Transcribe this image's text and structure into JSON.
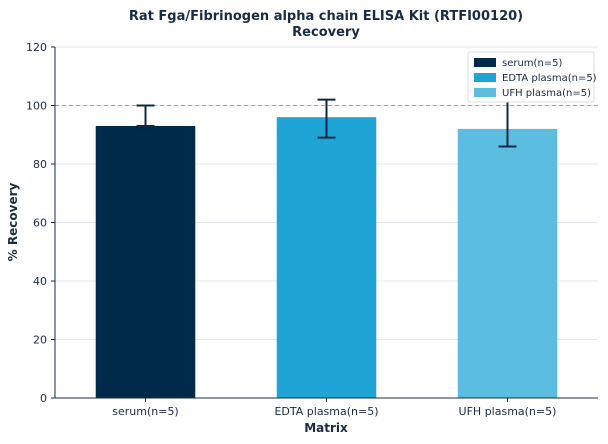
{
  "chart_data": {
    "type": "bar",
    "title": "Rat Fga/Fibrinogen alpha chain ELISA Kit (RTFI00120)",
    "subtitle": "Recovery",
    "xlabel": "Matrix",
    "ylabel": "% Recovery",
    "ylim": [
      0,
      120
    ],
    "yticks": [
      0,
      20,
      40,
      60,
      80,
      100,
      120
    ],
    "grid": true,
    "reference_line": 100,
    "legend_position": "top-right",
    "categories": [
      "serum(n=5)",
      "EDTA plasma(n=5)",
      "UFH plasma(n=5)"
    ],
    "values": [
      93,
      96,
      92
    ],
    "error_low": [
      93,
      89,
      86
    ],
    "error_high": [
      100,
      102,
      102
    ],
    "colors": [
      "#002a4a",
      "#1ea5d6",
      "#5bbde0"
    ],
    "legend": [
      "serum(n=5)",
      "EDTA plasma(n=5)",
      "UFH plasma(n=5)"
    ]
  }
}
